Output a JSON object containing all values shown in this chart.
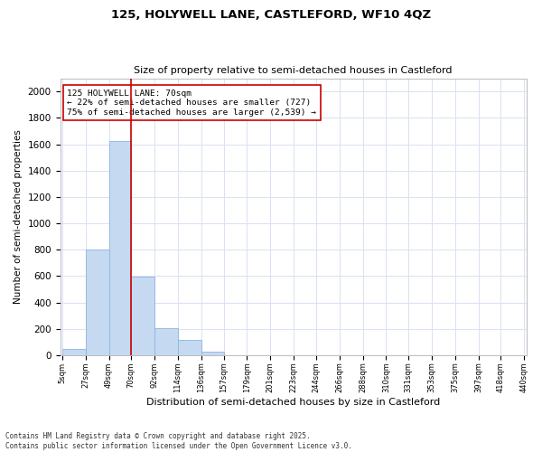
{
  "title_line1": "125, HOLYWELL LANE, CASTLEFORD, WF10 4QZ",
  "title_line2": "Size of property relative to semi-detached houses in Castleford",
  "xlabel": "Distribution of semi-detached houses by size in Castleford",
  "ylabel": "Number of semi-detached properties",
  "footer_line1": "Contains HM Land Registry data © Crown copyright and database right 2025.",
  "footer_line2": "Contains public sector information licensed under the Open Government Licence v3.0.",
  "annotation_title": "125 HOLYWELL LANE: 70sqm",
  "annotation_line1": "← 22% of semi-detached houses are smaller (727)",
  "annotation_line2": "75% of semi-detached houses are larger (2,539) →",
  "subject_size": 70,
  "bar_edges": [
    5,
    27,
    49,
    70,
    92,
    114,
    136,
    157,
    179,
    201,
    223,
    244,
    266,
    288,
    310,
    331,
    353,
    375,
    397,
    418,
    440
  ],
  "bar_heights": [
    45,
    800,
    1625,
    595,
    205,
    115,
    25,
    0,
    0,
    0,
    0,
    0,
    0,
    0,
    0,
    0,
    0,
    0,
    0,
    0
  ],
  "bar_color": "#c5d9f1",
  "bar_edge_color": "#8db4e2",
  "subject_line_color": "#cc0000",
  "annotation_box_color": "#cc0000",
  "grid_color": "#d9e1f2",
  "background_color": "#ffffff",
  "ylim": [
    0,
    2100
  ],
  "yticks": [
    0,
    200,
    400,
    600,
    800,
    1000,
    1200,
    1400,
    1600,
    1800,
    2000
  ]
}
